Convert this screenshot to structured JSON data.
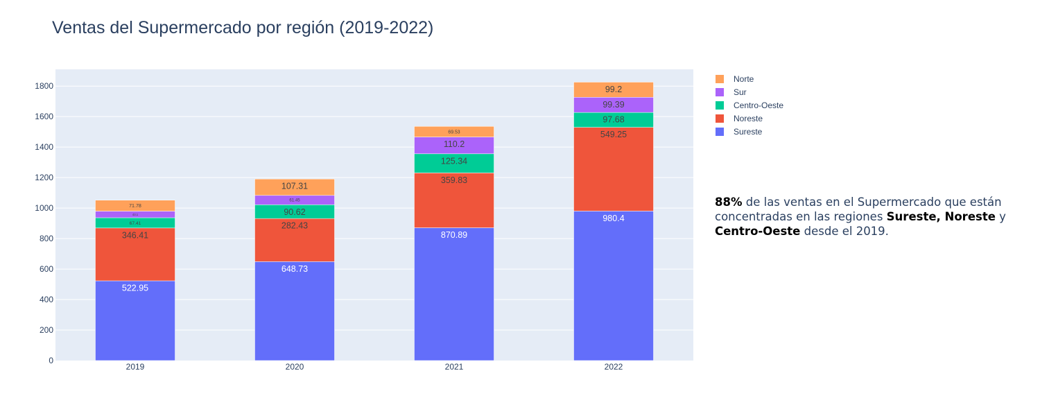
{
  "chart_data": {
    "type": "bar",
    "barmode": "stack",
    "title": "Ventas del Supermercado por región (2019-2022)",
    "categories": [
      "2019",
      "2020",
      "2021",
      "2022"
    ],
    "ylim": [
      0,
      1910
    ],
    "yticks": [
      0,
      200,
      400,
      600,
      800,
      1000,
      1200,
      1400,
      1600,
      1800
    ],
    "grid": true,
    "legend_position": "top-right",
    "series": [
      {
        "name": "Sureste",
        "color": "#636efa",
        "values": [
          522.95,
          648.73,
          870.89,
          980.4
        ],
        "label_color": "#ffffff"
      },
      {
        "name": "Noreste",
        "color": "#ef553b",
        "values": [
          346.41,
          282.43,
          359.83,
          549.25
        ],
        "label_color": "#444444"
      },
      {
        "name": "Centro-Oeste",
        "color": "#00cc96",
        "values": [
          67.41,
          90.62,
          125.34,
          97.68
        ],
        "label_color": "#444444"
      },
      {
        "name": "Sur",
        "color": "#ab63fa",
        "values": [
          43.1,
          61.45,
          110.2,
          99.39
        ],
        "label_color": "#444444"
      },
      {
        "name": "Norte",
        "color": "#ffa15a",
        "values": [
          71.78,
          107.31,
          69.53,
          99.2
        ],
        "label_color": "#444444"
      }
    ],
    "annotation": {
      "pct": "88%",
      "text1": " de las ventas en el Supermercado que están concentradas en las regiones ",
      "regions": "Sureste, Noreste",
      "text2": " y ",
      "region3": "Centro-Oeste",
      "text3": " desde el 2019."
    }
  }
}
